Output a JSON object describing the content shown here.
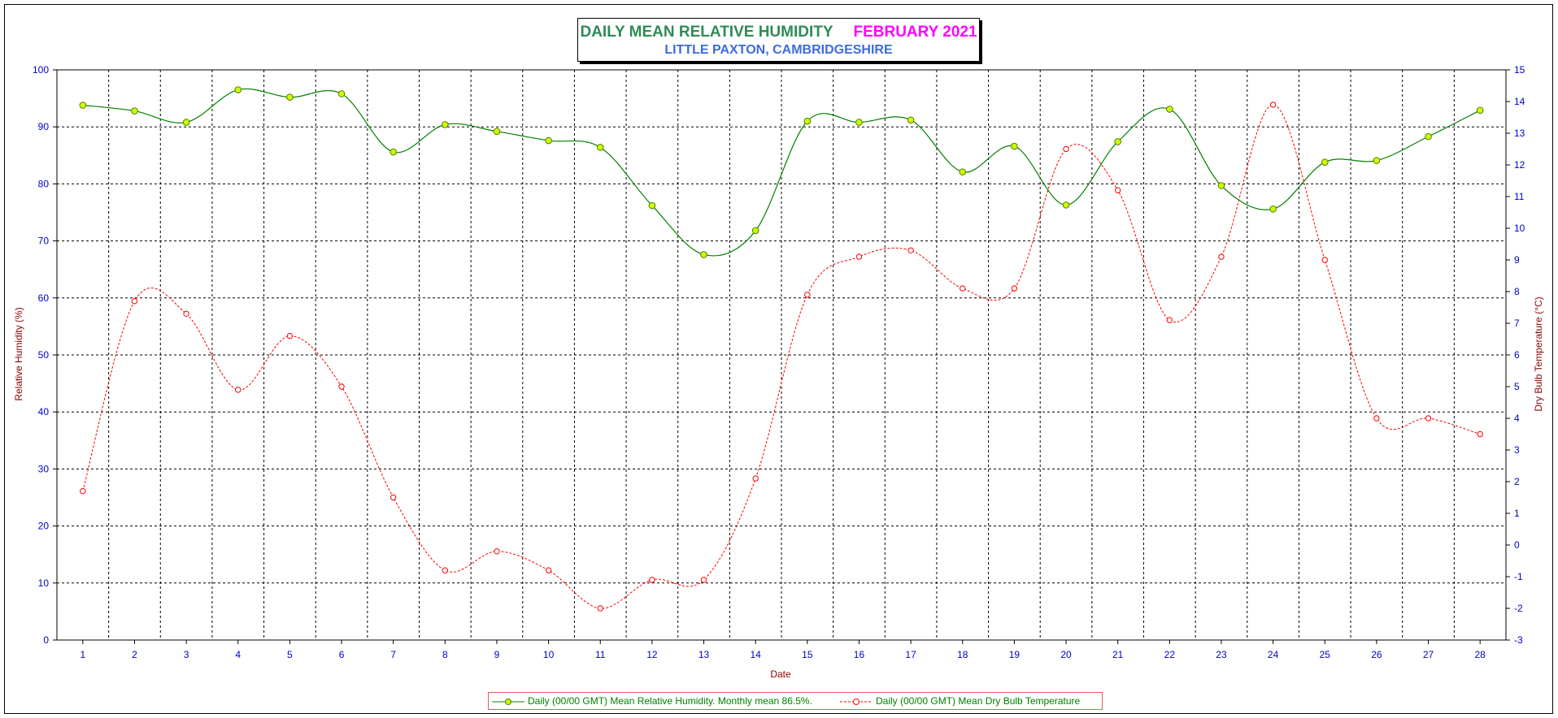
{
  "title": {
    "main": "DAILY MEAN RELATIVE HUMIDITY",
    "month": "FEBRUARY 2021",
    "subtitle": "LITTLE PAXTON, CAMBRIDGESHIRE"
  },
  "colors": {
    "humidity": "#008000",
    "humidity_marker": "#ccff00",
    "temperature": "#ff0000",
    "axis_text": "#0000cc",
    "axis_label": "#8b0000",
    "title_main": "#2e8b57",
    "title_month": "#ff00ff",
    "subtitle": "#3b6be0"
  },
  "chart_data": {
    "type": "line",
    "xlabel": "Date",
    "ylabel": "Relative Humidity (%)",
    "y2label": "Dry Bulb Temperature (°C)",
    "ylim": [
      0,
      100
    ],
    "y2lim": [
      -3,
      15
    ],
    "yticks": [
      0,
      10,
      20,
      30,
      40,
      50,
      60,
      70,
      80,
      90,
      100
    ],
    "y2ticks": [
      -3,
      -2,
      -1,
      0,
      1,
      2,
      3,
      4,
      5,
      6,
      7,
      8,
      9,
      10,
      11,
      12,
      13,
      14,
      15
    ],
    "grid": true,
    "legend_position": "bottom",
    "x": [
      1,
      2,
      3,
      4,
      5,
      6,
      7,
      8,
      9,
      10,
      11,
      12,
      13,
      14,
      15,
      16,
      17,
      18,
      19,
      20,
      21,
      22,
      23,
      24,
      25,
      26,
      27,
      28
    ],
    "series": [
      {
        "name": "Daily (00/00 GMT) Mean Relative Humidity. Monthly mean 86.5%.",
        "axis": "left",
        "values": [
          93.8,
          92.8,
          90.8,
          96.5,
          95.2,
          95.8,
          85.6,
          90.4,
          89.2,
          87.6,
          86.4,
          76.2,
          67.6,
          71.8,
          91.0,
          90.8,
          91.2,
          82.1,
          86.6,
          76.3,
          87.4,
          93.1,
          79.7,
          75.6,
          83.8,
          84.1,
          88.3,
          92.9
        ]
      },
      {
        "name": "Daily (00/00 GMT) Mean Dry Bulb Temperature",
        "axis": "right",
        "values": [
          1.7,
          7.7,
          7.3,
          4.9,
          6.6,
          5.0,
          1.5,
          -0.8,
          -0.2,
          -0.8,
          -2.0,
          -1.1,
          -1.1,
          2.1,
          7.9,
          9.1,
          9.3,
          8.1,
          8.1,
          12.5,
          11.2,
          7.1,
          9.1,
          13.9,
          9.0,
          4.0,
          4.0,
          3.5
        ]
      }
    ]
  }
}
